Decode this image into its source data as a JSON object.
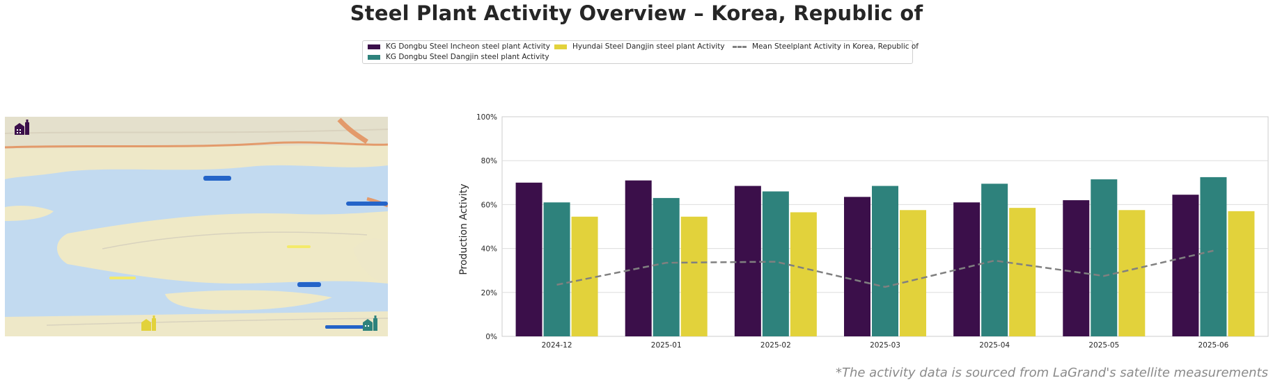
{
  "title": "Steel Plant Activity Overview – Korea, Republic of",
  "footnote": "*The activity data is sourced from LaGrand's satellite measurements",
  "legend": {
    "items": [
      {
        "label": "KG Dongbu Steel Incheon steel plant Activity",
        "color": "#3b0f4a",
        "kind": "bar"
      },
      {
        "label": "KG Dongbu Steel Dangjin steel plant Activity",
        "color": "#2e827c",
        "kind": "bar"
      },
      {
        "label": "Hyundai Steel Dangjin steel plant Activity",
        "color": "#e2d23b",
        "kind": "bar"
      },
      {
        "label": "Mean Steelplant Activity in Korea, Republic of",
        "color": "#808080",
        "kind": "line"
      }
    ]
  },
  "map": {
    "markers": [
      {
        "name": "KG Dongbu Steel Incheon",
        "color": "#3b0f4a"
      },
      {
        "name": "Hyundai Steel Dangjin",
        "color": "#e2d23b"
      },
      {
        "name": "KG Dongbu Steel Dangjin",
        "color": "#2e827c"
      }
    ]
  },
  "chart_data": {
    "type": "bar",
    "categories": [
      "2024-12",
      "2025-01",
      "2025-02",
      "2025-03",
      "2025-04",
      "2025-05",
      "2025-06"
    ],
    "ylabel": "Production Activity",
    "ylim": [
      0,
      100
    ],
    "yticks": [
      "0%",
      "20%",
      "40%",
      "60%",
      "80%",
      "100%"
    ],
    "grid": true,
    "legend_position": "top-center",
    "series": [
      {
        "name": "KG Dongbu Steel Incheon steel plant Activity",
        "color": "#3b0f4a",
        "values": [
          70,
          71,
          68.5,
          63.5,
          61,
          62,
          64.5
        ]
      },
      {
        "name": "KG Dongbu Steel Dangjin steel plant Activity",
        "color": "#2e827c",
        "values": [
          61,
          63,
          66,
          68.5,
          69.5,
          71.5,
          72.5
        ]
      },
      {
        "name": "Hyundai Steel Dangjin steel plant Activity",
        "color": "#e2d23b",
        "values": [
          54.5,
          54.5,
          56.5,
          57.5,
          58.5,
          57.5,
          57
        ]
      }
    ],
    "line": {
      "name": "Mean Steelplant Activity in Korea, Republic of",
      "color": "#808080",
      "values": [
        23.5,
        33.5,
        34,
        22.5,
        34.5,
        27.5,
        39
      ]
    }
  }
}
